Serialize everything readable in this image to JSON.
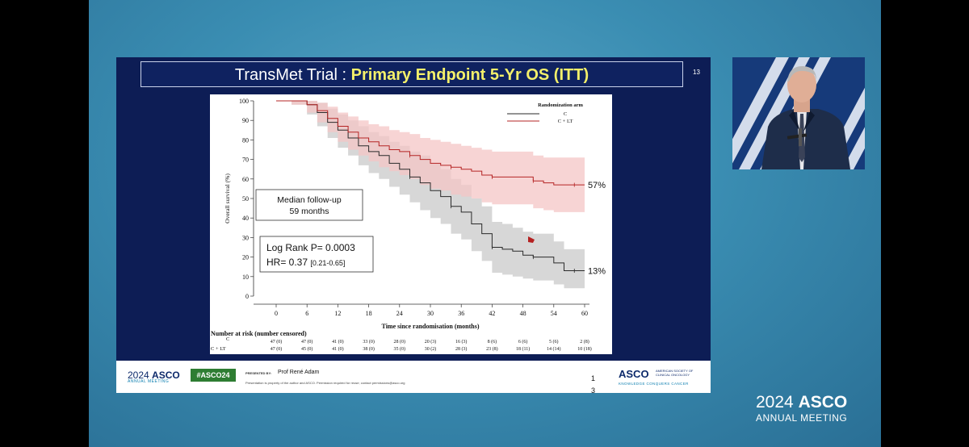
{
  "slide": {
    "title_prefix": "TransMet Trial : ",
    "title_highlight": "Primary Endpoint 5-Yr OS (ITT)",
    "slide_number": "13"
  },
  "chart_data": {
    "type": "line",
    "xlabel": "Time since randomisation (months)",
    "ylabel": "Overall survival (%)",
    "xlim": [
      0,
      60
    ],
    "ylim": [
      0,
      100
    ],
    "x_ticks": [
      "0",
      "6",
      "12",
      "18",
      "24",
      "30",
      "36",
      "42",
      "48",
      "54",
      "60"
    ],
    "y_ticks": [
      "0",
      "10",
      "20",
      "30",
      "40",
      "50",
      "60",
      "70",
      "80",
      "90",
      "100"
    ],
    "legend_title": "Randomization arm",
    "legend_placement": "top-right",
    "series": [
      {
        "name": "C",
        "color": "#2a2a2a",
        "band_color": "#c9c9c9",
        "x": [
          0,
          3,
          6,
          8,
          10,
          12,
          14,
          16,
          18,
          20,
          22,
          24,
          26,
          28,
          30,
          32,
          34,
          36,
          38,
          40,
          42,
          44,
          46,
          48,
          50,
          52,
          54,
          56,
          58,
          60
        ],
        "y": [
          100,
          100,
          98,
          94,
          89,
          85,
          81,
          77,
          74,
          72,
          68,
          65,
          61,
          58,
          54,
          51,
          46,
          43,
          37,
          32,
          25,
          24,
          23,
          21,
          20,
          20,
          17,
          13,
          13,
          13
        ],
        "lower": [
          100,
          98,
          93,
          87,
          81,
          76,
          72,
          67,
          63,
          60,
          56,
          52,
          48,
          44,
          40,
          37,
          32,
          29,
          23,
          18,
          12,
          11,
          10,
          9,
          8,
          8,
          6,
          4,
          4,
          4
        ],
        "upper": [
          100,
          100,
          100,
          99,
          96,
          93,
          90,
          87,
          84,
          82,
          79,
          77,
          74,
          72,
          68,
          65,
          60,
          57,
          50,
          46,
          38,
          37,
          35,
          33,
          32,
          32,
          28,
          24,
          24,
          24
        ]
      },
      {
        "name": "C + LT",
        "color": "#b52424",
        "band_color": "#f4c6c6",
        "x": [
          0,
          3,
          6,
          8,
          10,
          12,
          14,
          16,
          18,
          20,
          22,
          24,
          26,
          28,
          30,
          32,
          34,
          36,
          38,
          40,
          42,
          44,
          46,
          48,
          50,
          52,
          54,
          56,
          58,
          60
        ],
        "y": [
          100,
          100,
          98,
          95,
          91,
          87,
          84,
          81,
          79,
          77,
          75,
          74,
          72,
          70,
          68,
          67,
          66,
          65,
          64,
          62,
          61,
          61,
          61,
          61,
          59,
          58,
          57,
          57,
          57,
          57
        ],
        "lower": [
          100,
          98,
          94,
          89,
          84,
          79,
          75,
          72,
          69,
          66,
          64,
          62,
          60,
          57,
          55,
          54,
          52,
          51,
          50,
          48,
          47,
          47,
          47,
          47,
          45,
          44,
          43,
          43,
          43,
          43
        ],
        "upper": [
          100,
          100,
          100,
          99,
          97,
          94,
          92,
          90,
          88,
          87,
          85,
          84,
          83,
          81,
          80,
          79,
          78,
          77,
          76,
          75,
          74,
          74,
          74,
          74,
          72,
          71,
          71,
          71,
          71,
          71
        ]
      }
    ],
    "end_labels": [
      "57%",
      "13%"
    ],
    "box_followup": [
      "Median follow-up",
      "59 months"
    ],
    "box_stats": [
      "Log Rank P= 0.0003",
      "HR= 0.37",
      "[0.21-0.65]"
    ],
    "risk_table": {
      "title": "Number at risk (number censored)",
      "rows": [
        {
          "label": "C",
          "values": [
            "47 (0)",
            "47 (0)",
            "41 (0)",
            "33 (0)",
            "28 (0)",
            "20 (3)",
            "16 (3)",
            "8 (6)",
            "6 (6)",
            "5 (6)",
            "2 (8)"
          ]
        },
        {
          "label": "C + LT",
          "values": [
            "47 (0)",
            "45 (0)",
            "41 (0)",
            "38 (0)",
            "35 (0)",
            "30 (2)",
            "28 (3)",
            "23 (8)",
            "18 (11)",
            "14 (14)",
            "10 (18)"
          ]
        }
      ]
    }
  },
  "footer": {
    "asco_year": "2024",
    "asco_word": "ASCO",
    "annual_meeting": "ANNUAL MEETING",
    "hashtag": "#ASCO24",
    "presented_by_label": "PRESENTED BY:",
    "presenter": "Prof René Adam",
    "disclaimer": "Presentation is property of the author and ASCO. Permission required for reuse; contact permissions@asco.org",
    "page_number": "1 3",
    "asco_corp": "ASCO",
    "asco_corp_sub": "AMERICAN SOCIETY OF CLINICAL ONCOLOGY",
    "tagline": "KNOWLEDGE CONQUERS CANCER"
  },
  "brand": {
    "year": "2024",
    "asco": "ASCO",
    "annual_meeting": "ANNUAL MEETING"
  }
}
